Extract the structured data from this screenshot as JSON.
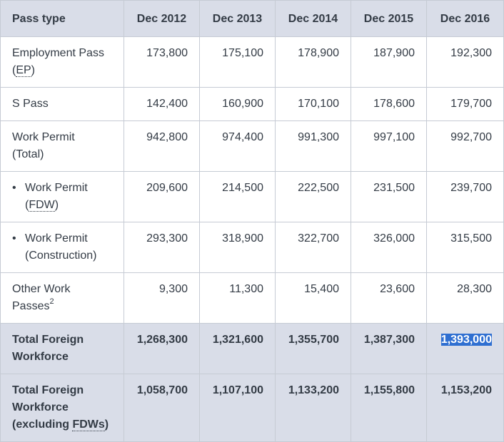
{
  "header": {
    "pass_type": "Pass type",
    "years": [
      "Dec 2012",
      "Dec 2013",
      "Dec 2014",
      "Dec 2015",
      "Dec 2016"
    ]
  },
  "rows": {
    "ep": {
      "label_line1": "Employment Pass",
      "label_line2_open": "(",
      "label_line2_abbr": "EP",
      "label_line2_close": ")",
      "values": [
        "173,800",
        "175,100",
        "178,900",
        "187,900",
        "192,300"
      ]
    },
    "sp": {
      "label": "S Pass",
      "values": [
        "142,400",
        "160,900",
        "170,100",
        "178,600",
        "179,700"
      ]
    },
    "wp": {
      "label_line1": "Work Permit",
      "label_line2": "(Total)",
      "values": [
        "942,800",
        "974,400",
        "991,300",
        "997,100",
        "992,700"
      ]
    },
    "fdw": {
      "bullet": "•",
      "label_line1": "Work Permit",
      "label_line2_open": "(",
      "label_line2_abbr": "FDW",
      "label_line2_close": ")",
      "values": [
        "209,600",
        "214,500",
        "222,500",
        "231,500",
        "239,700"
      ]
    },
    "con": {
      "bullet": "•",
      "label_line1": "Work Permit",
      "label_line2": "(Construction)",
      "values": [
        "293,300",
        "318,900",
        "322,700",
        "326,000",
        "315,500"
      ]
    },
    "other": {
      "label_line1": "Other Work",
      "label_line2": "Passes",
      "footnote": "2",
      "values": [
        "9,300",
        "11,300",
        "15,400",
        "23,600",
        "28,300"
      ]
    },
    "total": {
      "label_line1": "Total Foreign",
      "label_line2": "Workforce",
      "values": [
        "1,268,300",
        "1,321,600",
        "1,355,700",
        "1,387,300",
        "1,393,000"
      ]
    },
    "total_ex": {
      "label_line1": "Total Foreign",
      "label_line2": "Workforce",
      "label_line3_open": "(excluding ",
      "label_line3_abbr": "FDWs",
      "label_line3_close": ")",
      "values": [
        "1,058,700",
        "1,107,100",
        "1,133,200",
        "1,155,800",
        "1,153,200"
      ]
    }
  },
  "colors": {
    "header_bg": "#d9dde8",
    "border": "#c6cbd4",
    "text": "#333b45",
    "selection": "#2f6fd1"
  }
}
